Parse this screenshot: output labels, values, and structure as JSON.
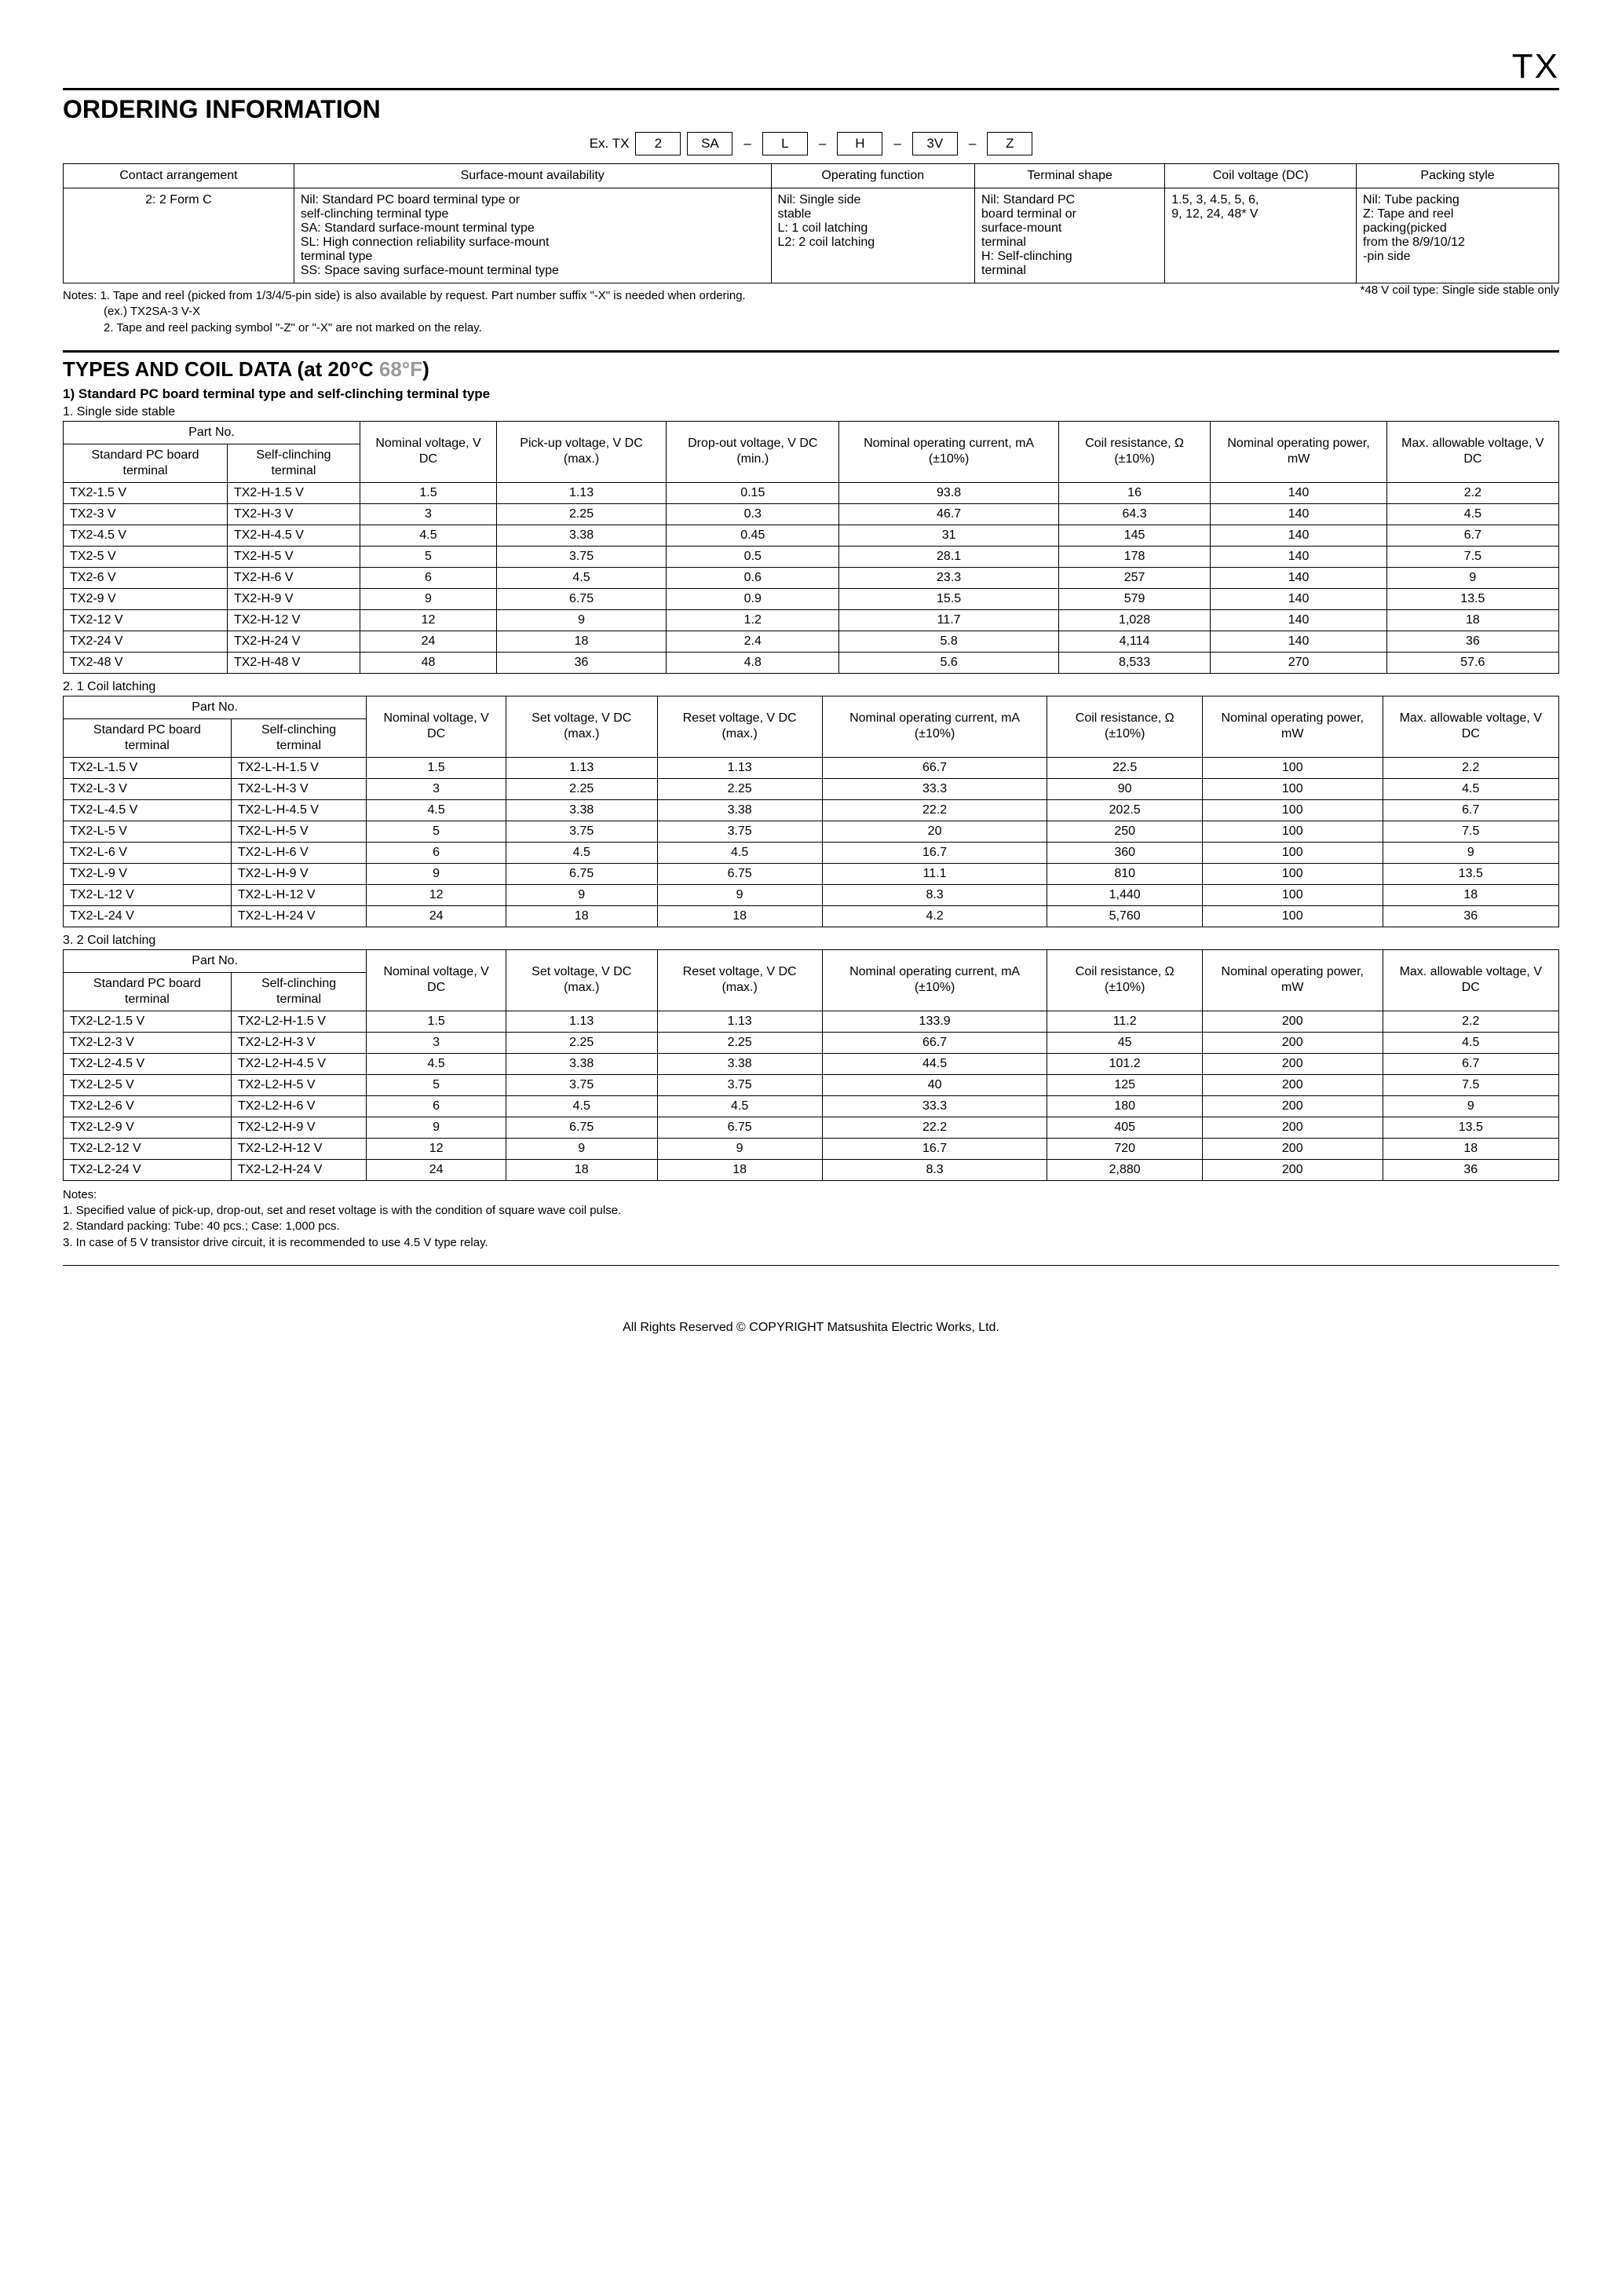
{
  "page_header": "TX",
  "ordering": {
    "title": "ORDERING INFORMATION",
    "ex_label": "Ex. TX",
    "boxes": [
      "2",
      "SA",
      "L",
      "H",
      "3V",
      "Z"
    ],
    "headers": [
      "Contact arrangement",
      "Surface-mount availability",
      "Operating function",
      "Terminal shape",
      "Coil voltage (DC)",
      "Packing style"
    ],
    "cells": [
      "2: 2 Form C",
      "Nil: Standard PC board terminal type or\n self-clinching terminal type\nSA: Standard surface-mount terminal type\nSL: High connection reliability surface-mount\n terminal type\nSS: Space saving surface-mount terminal type",
      "Nil: Single side\n stable\nL: 1 coil latching\nL2: 2 coil latching",
      "Nil: Standard PC\n board terminal or\n surface-mount\n terminal\nH: Self-clinching\n terminal",
      "1.5, 3, 4.5, 5, 6,\n 9, 12, 24, 48* V",
      "Nil: Tube packing\nZ: Tape and reel\n packing(picked\n from the 8/9/10/12\n -pin side"
    ],
    "note1": "Notes:  1. Tape and reel (picked from 1/3/4/5-pin side) is also available by request. Part number suffix \"-X\" is needed when ordering.",
    "note1b": "(ex.) TX2SA-3 V-X",
    "note2": "2. Tape and reel packing symbol \"-Z\" or \"-X\" are not marked on the relay.",
    "star": "*48 V coil type: Single side stable only"
  },
  "types": {
    "title_a": "TYPES AND COIL DATA (at 20°C ",
    "title_b": "68°F",
    "title_c": ")",
    "sub1": "1) Standard PC board terminal type and self-clinching terminal type",
    "t1_label": "1. Single side stable",
    "t2_label": "2. 1 Coil latching",
    "t3_label": "3. 2 Coil latching",
    "hdr_partno": "Part No.",
    "hdr_std": "Standard PC board terminal",
    "hdr_self": "Self-clinching terminal",
    "hdr_nom": "Nominal voltage, V DC",
    "hdr_pickup": "Pick-up voltage, V DC (max.)",
    "hdr_dropout": "Drop-out voltage, V DC (min.)",
    "hdr_set": "Set voltage, V DC (max.)",
    "hdr_reset": "Reset voltage, V DC (max.)",
    "hdr_cur": "Nominal operating current, mA (±10%)",
    "hdr_res": "Coil resistance, Ω (±10%)",
    "hdr_pow": "Nominal operating power, mW",
    "hdr_max": "Max. allowable voltage, V DC"
  },
  "table1": [
    [
      "TX2-1.5 V",
      "TX2-H-1.5 V",
      "1.5",
      "1.13",
      "0.15",
      "93.8",
      "16",
      "140",
      "2.2"
    ],
    [
      "TX2-3 V",
      "TX2-H-3 V",
      "3",
      "2.25",
      "0.3",
      "46.7",
      "64.3",
      "140",
      "4.5"
    ],
    [
      "TX2-4.5 V",
      "TX2-H-4.5 V",
      "4.5",
      "3.38",
      "0.45",
      "31",
      "145",
      "140",
      "6.7"
    ],
    [
      "TX2-5 V",
      "TX2-H-5 V",
      "5",
      "3.75",
      "0.5",
      "28.1",
      "178",
      "140",
      "7.5"
    ],
    [
      "TX2-6 V",
      "TX2-H-6 V",
      "6",
      "4.5",
      "0.6",
      "23.3",
      "257",
      "140",
      "9"
    ],
    [
      "TX2-9 V",
      "TX2-H-9 V",
      "9",
      "6.75",
      "0.9",
      "15.5",
      "579",
      "140",
      "13.5"
    ],
    [
      "TX2-12 V",
      "TX2-H-12 V",
      "12",
      "9",
      "1.2",
      "11.7",
      "1,028",
      "140",
      "18"
    ],
    [
      "TX2-24 V",
      "TX2-H-24 V",
      "24",
      "18",
      "2.4",
      "5.8",
      "4,114",
      "140",
      "36"
    ],
    [
      "TX2-48 V",
      "TX2-H-48 V",
      "48",
      "36",
      "4.8",
      "5.6",
      "8,533",
      "270",
      "57.6"
    ]
  ],
  "table2": [
    [
      "TX2-L-1.5 V",
      "TX2-L-H-1.5 V",
      "1.5",
      "1.13",
      "1.13",
      "66.7",
      "22.5",
      "100",
      "2.2"
    ],
    [
      "TX2-L-3 V",
      "TX2-L-H-3 V",
      "3",
      "2.25",
      "2.25",
      "33.3",
      "90",
      "100",
      "4.5"
    ],
    [
      "TX2-L-4.5 V",
      "TX2-L-H-4.5 V",
      "4.5",
      "3.38",
      "3.38",
      "22.2",
      "202.5",
      "100",
      "6.7"
    ],
    [
      "TX2-L-5 V",
      "TX2-L-H-5 V",
      "5",
      "3.75",
      "3.75",
      "20",
      "250",
      "100",
      "7.5"
    ],
    [
      "TX2-L-6 V",
      "TX2-L-H-6 V",
      "6",
      "4.5",
      "4.5",
      "16.7",
      "360",
      "100",
      "9"
    ],
    [
      "TX2-L-9 V",
      "TX2-L-H-9 V",
      "9",
      "6.75",
      "6.75",
      "11.1",
      "810",
      "100",
      "13.5"
    ],
    [
      "TX2-L-12 V",
      "TX2-L-H-12 V",
      "12",
      "9",
      "9",
      "8.3",
      "1,440",
      "100",
      "18"
    ],
    [
      "TX2-L-24 V",
      "TX2-L-H-24 V",
      "24",
      "18",
      "18",
      "4.2",
      "5,760",
      "100",
      "36"
    ]
  ],
  "table3": [
    [
      "TX2-L2-1.5 V",
      "TX2-L2-H-1.5 V",
      "1.5",
      "1.13",
      "1.13",
      "133.9",
      "11.2",
      "200",
      "2.2"
    ],
    [
      "TX2-L2-3 V",
      "TX2-L2-H-3 V",
      "3",
      "2.25",
      "2.25",
      "66.7",
      "45",
      "200",
      "4.5"
    ],
    [
      "TX2-L2-4.5 V",
      "TX2-L2-H-4.5 V",
      "4.5",
      "3.38",
      "3.38",
      "44.5",
      "101.2",
      "200",
      "6.7"
    ],
    [
      "TX2-L2-5 V",
      "TX2-L2-H-5 V",
      "5",
      "3.75",
      "3.75",
      "40",
      "125",
      "200",
      "7.5"
    ],
    [
      "TX2-L2-6 V",
      "TX2-L2-H-6 V",
      "6",
      "4.5",
      "4.5",
      "33.3",
      "180",
      "200",
      "9"
    ],
    [
      "TX2-L2-9 V",
      "TX2-L2-H-9 V",
      "9",
      "6.75",
      "6.75",
      "22.2",
      "405",
      "200",
      "13.5"
    ],
    [
      "TX2-L2-12 V",
      "TX2-L2-H-12 V",
      "12",
      "9",
      "9",
      "16.7",
      "720",
      "200",
      "18"
    ],
    [
      "TX2-L2-24 V",
      "TX2-L2-H-24 V",
      "24",
      "18",
      "18",
      "8.3",
      "2,880",
      "200",
      "36"
    ]
  ],
  "bottom_notes": {
    "h": "Notes:",
    "n1": "1. Specified value of pick-up, drop-out, set and reset voltage is with the condition of square wave coil pulse.",
    "n2": "2. Standard packing: Tube: 40 pcs.; Case: 1,000 pcs.",
    "n3": "3. In case of 5 V transistor drive circuit, it is recommended to use 4.5 V type relay."
  },
  "footer": "All Rights Reserved © COPYRIGHT Matsushita Electric Works, Ltd."
}
